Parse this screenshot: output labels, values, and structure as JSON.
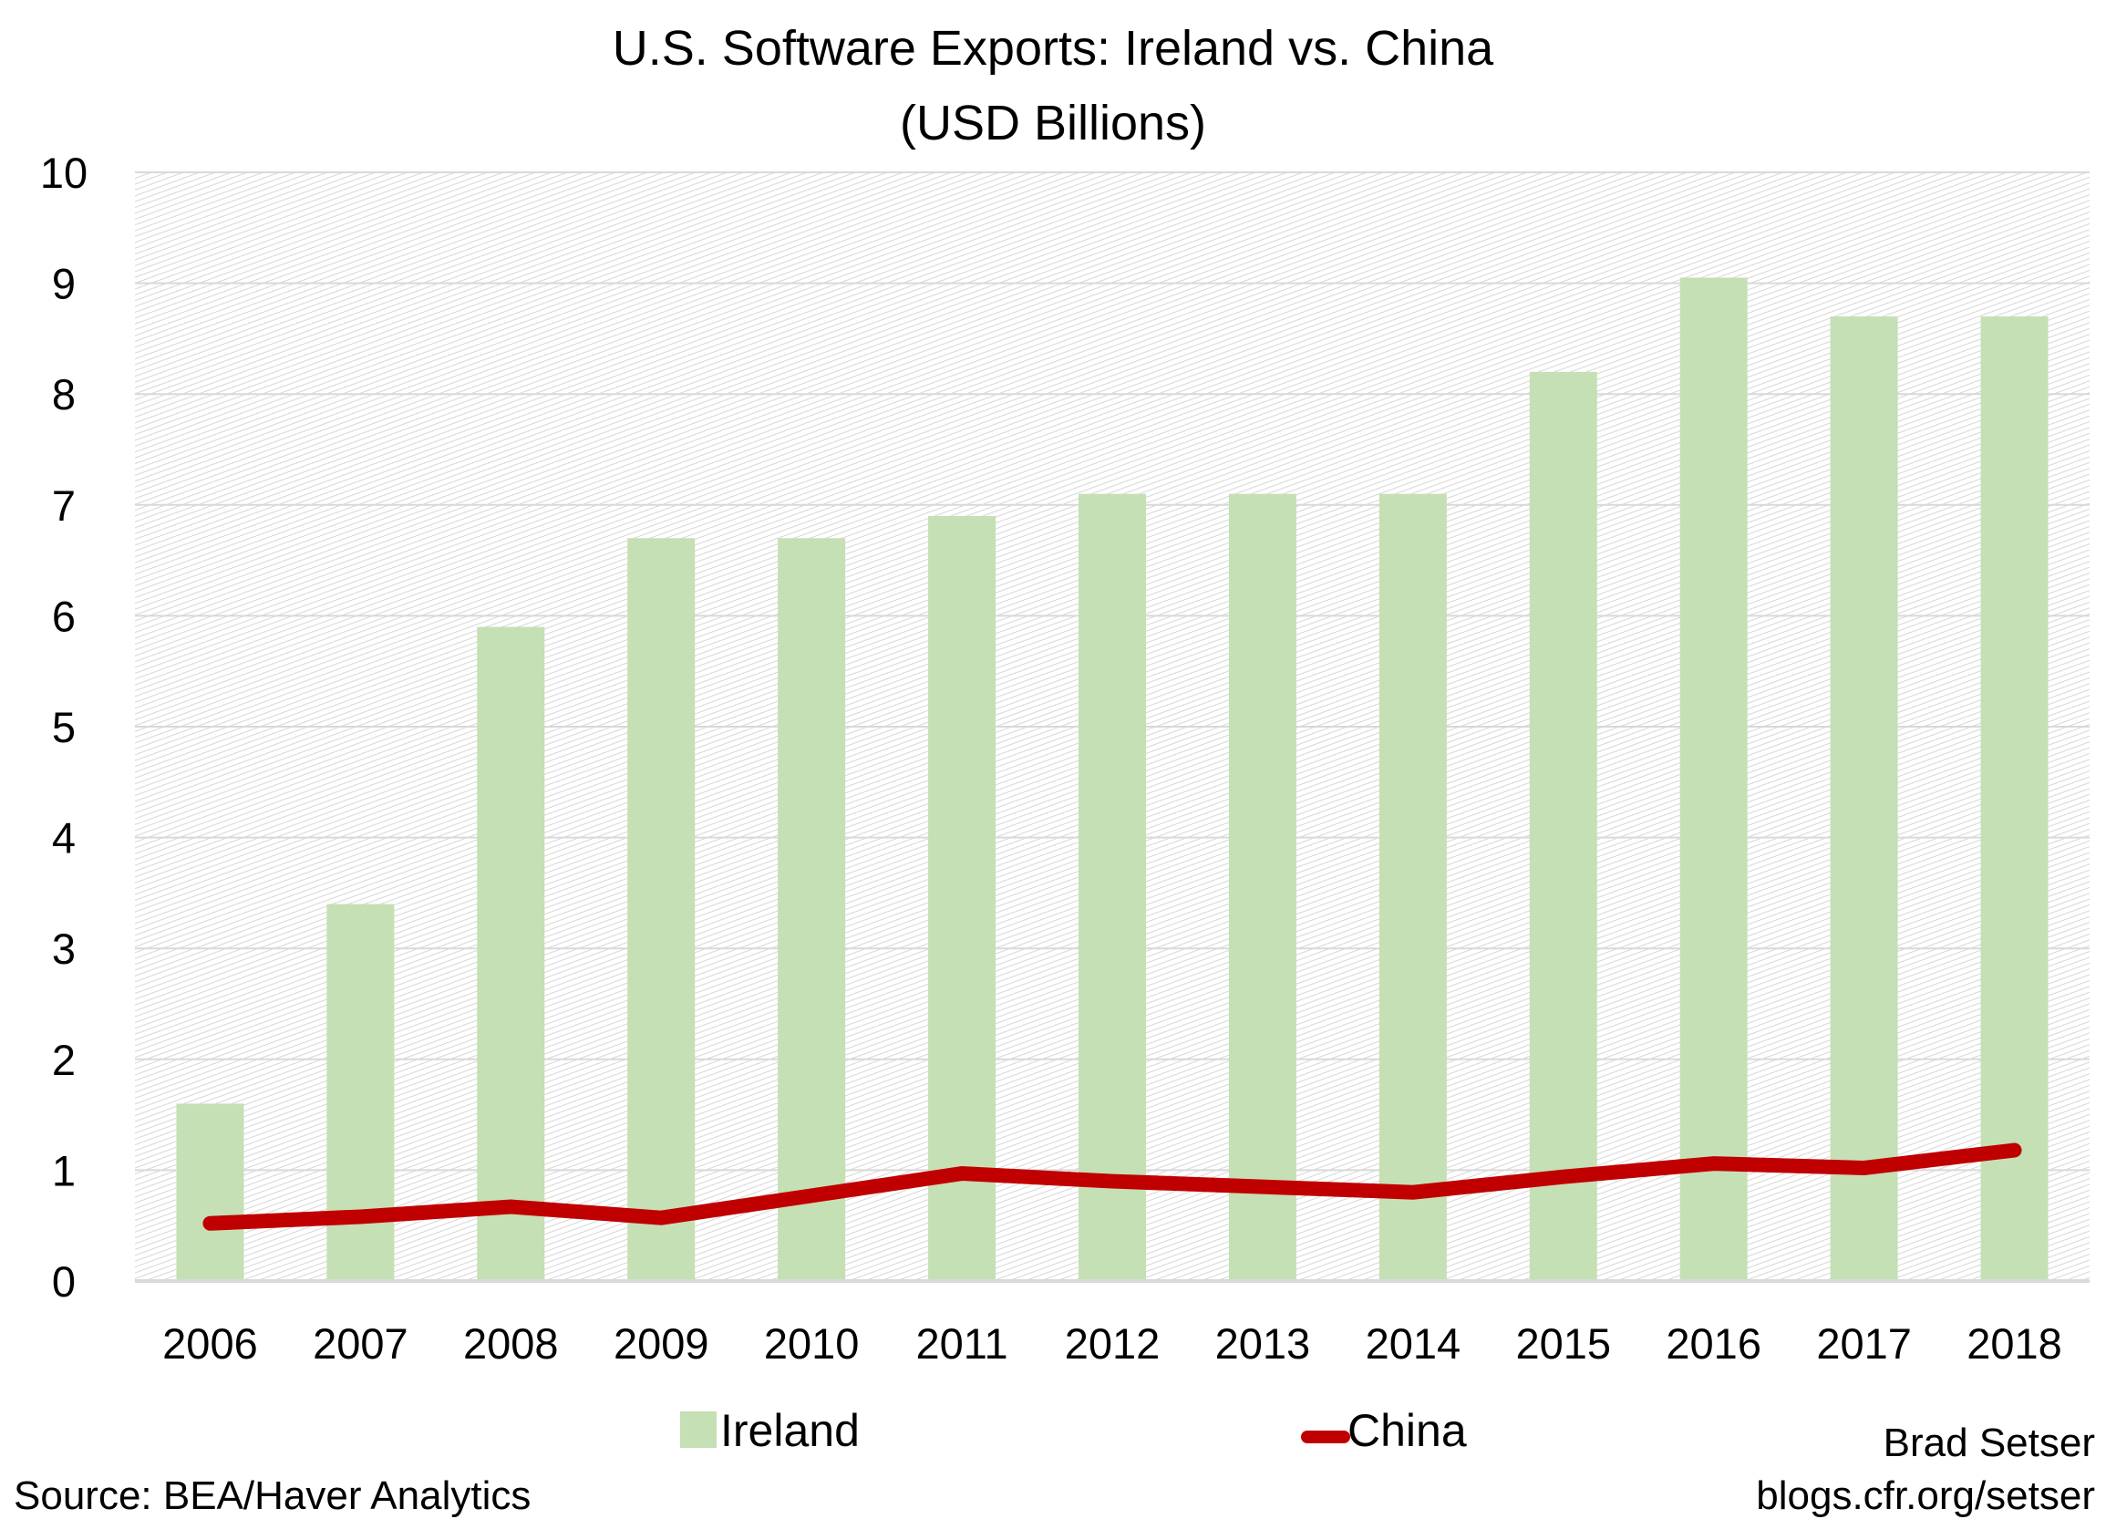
{
  "chart_data": {
    "type": "bar+line",
    "title": "U.S. Software Exports: Ireland vs. China",
    "subtitle": "(USD Billions)",
    "categories": [
      "2006",
      "2007",
      "2008",
      "2009",
      "2010",
      "2011",
      "2012",
      "2013",
      "2014",
      "2015",
      "2016",
      "2017",
      "2018"
    ],
    "ylim": [
      0,
      10
    ],
    "yticks": [
      "0",
      "1",
      "2",
      "3",
      "4",
      "5",
      "6",
      "7",
      "8",
      "9",
      "10"
    ],
    "grid": true,
    "legend_placement": "bottom",
    "series": [
      {
        "name": "Ireland",
        "type": "bar",
        "color": "#c5e0b4",
        "values": [
          1.6,
          3.4,
          5.9,
          6.7,
          6.7,
          6.9,
          7.1,
          7.1,
          7.1,
          8.2,
          9.05,
          8.7,
          8.7
        ]
      },
      {
        "name": "China",
        "type": "line",
        "color": "#c00000",
        "values": [
          0.52,
          0.58,
          0.67,
          0.57,
          0.77,
          0.97,
          0.9,
          0.85,
          0.8,
          0.94,
          1.06,
          1.02,
          1.18
        ]
      }
    ]
  },
  "footer": {
    "source": "Source: BEA/Haver Analytics",
    "author": "Brad Setser",
    "site": "blogs.cfr.org/setser"
  }
}
